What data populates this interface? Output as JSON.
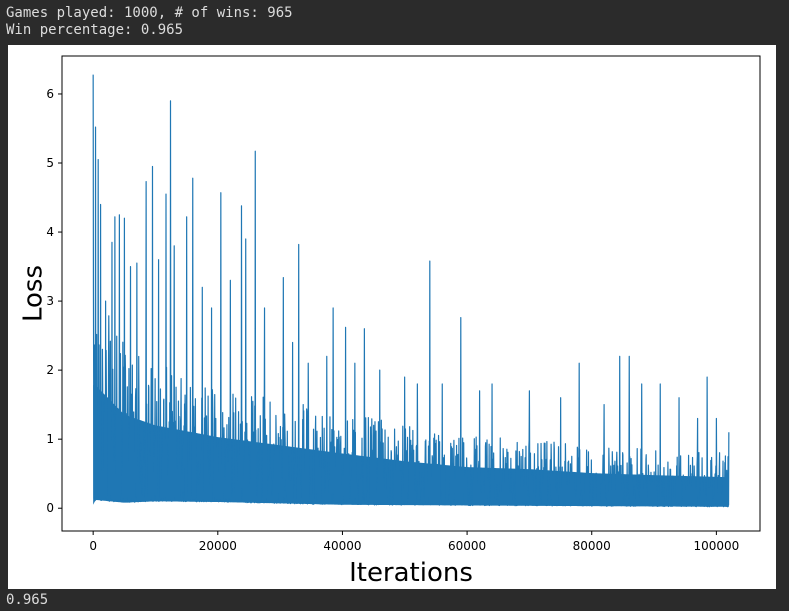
{
  "output": {
    "games_line": "Games played: 1000, # of wins: 965",
    "percent_line": "Win percentage: 0.965",
    "result_value": "0.965"
  },
  "chart_data": {
    "type": "line",
    "title": "",
    "xlabel": "Iterations",
    "ylabel": "Loss",
    "xlim": [
      -5000,
      107000
    ],
    "ylim": [
      -0.33,
      6.55
    ],
    "xticks": [
      0,
      20000,
      40000,
      60000,
      80000,
      100000
    ],
    "xtick_labels": [
      "0",
      "20000",
      "40000",
      "60000",
      "80000",
      "100000"
    ],
    "yticks": [
      0,
      1,
      2,
      3,
      4,
      5,
      6
    ],
    "ytick_labels": [
      "0",
      "1",
      "2",
      "3",
      "4",
      "5",
      "6"
    ],
    "grid": false,
    "legend": false,
    "series": [
      {
        "color": "#1f77b4",
        "x_max": 102000,
        "upper_envelope": [
          [
            0,
            6.28
          ],
          [
            400,
            5.52
          ],
          [
            800,
            5.05
          ],
          [
            1200,
            4.4
          ],
          [
            2000,
            3.0
          ],
          [
            3000,
            3.85
          ],
          [
            3500,
            4.22
          ],
          [
            4200,
            4.25
          ],
          [
            5000,
            4.2
          ],
          [
            6000,
            3.5
          ],
          [
            7000,
            3.55
          ],
          [
            8500,
            4.73
          ],
          [
            9500,
            4.95
          ],
          [
            10500,
            3.6
          ],
          [
            11700,
            4.55
          ],
          [
            12400,
            5.9
          ],
          [
            13000,
            3.8
          ],
          [
            15000,
            4.22
          ],
          [
            16000,
            4.78
          ],
          [
            17500,
            3.2
          ],
          [
            19000,
            2.9
          ],
          [
            20500,
            4.57
          ],
          [
            22000,
            3.3
          ],
          [
            23800,
            4.38
          ],
          [
            24500,
            3.9
          ],
          [
            26000,
            5.17
          ],
          [
            27500,
            2.9
          ],
          [
            30500,
            3.34
          ],
          [
            32000,
            2.4
          ],
          [
            33000,
            3.82
          ],
          [
            34500,
            2.1
          ],
          [
            37500,
            2.2
          ],
          [
            38500,
            2.9
          ],
          [
            40500,
            2.62
          ],
          [
            42000,
            2.1
          ],
          [
            43500,
            2.6
          ],
          [
            46000,
            2.0
          ],
          [
            50000,
            1.9
          ],
          [
            52000,
            1.8
          ],
          [
            54000,
            3.58
          ],
          [
            56000,
            1.8
          ],
          [
            59000,
            2.76
          ],
          [
            62000,
            1.7
          ],
          [
            64000,
            1.8
          ],
          [
            70000,
            1.7
          ],
          [
            75000,
            1.6
          ],
          [
            78000,
            2.1
          ],
          [
            82000,
            1.5
          ],
          [
            84500,
            2.2
          ],
          [
            86000,
            2.2
          ],
          [
            88000,
            1.8
          ],
          [
            91000,
            1.8
          ],
          [
            94000,
            1.6
          ],
          [
            97000,
            1.3
          ],
          [
            98500,
            1.9
          ],
          [
            100000,
            1.3
          ],
          [
            102000,
            1.1
          ]
        ],
        "lower_envelope": [
          [
            0,
            0.05
          ],
          [
            400,
            0.12
          ],
          [
            5000,
            0.08
          ],
          [
            10000,
            0.1
          ],
          [
            20000,
            0.09
          ],
          [
            30000,
            0.07
          ],
          [
            40000,
            0.05
          ],
          [
            60000,
            0.04
          ],
          [
            80000,
            0.03
          ],
          [
            102000,
            0.02
          ]
        ],
        "dense_band_top": [
          [
            0,
            3.2
          ],
          [
            5000,
            2.4
          ],
          [
            10000,
            2.1
          ],
          [
            20000,
            1.8
          ],
          [
            30000,
            1.6
          ],
          [
            40000,
            1.4
          ],
          [
            50000,
            1.2
          ],
          [
            60000,
            1.05
          ],
          [
            70000,
            1.0
          ],
          [
            80000,
            0.9
          ],
          [
            90000,
            0.85
          ],
          [
            102000,
            0.8
          ]
        ]
      }
    ]
  }
}
